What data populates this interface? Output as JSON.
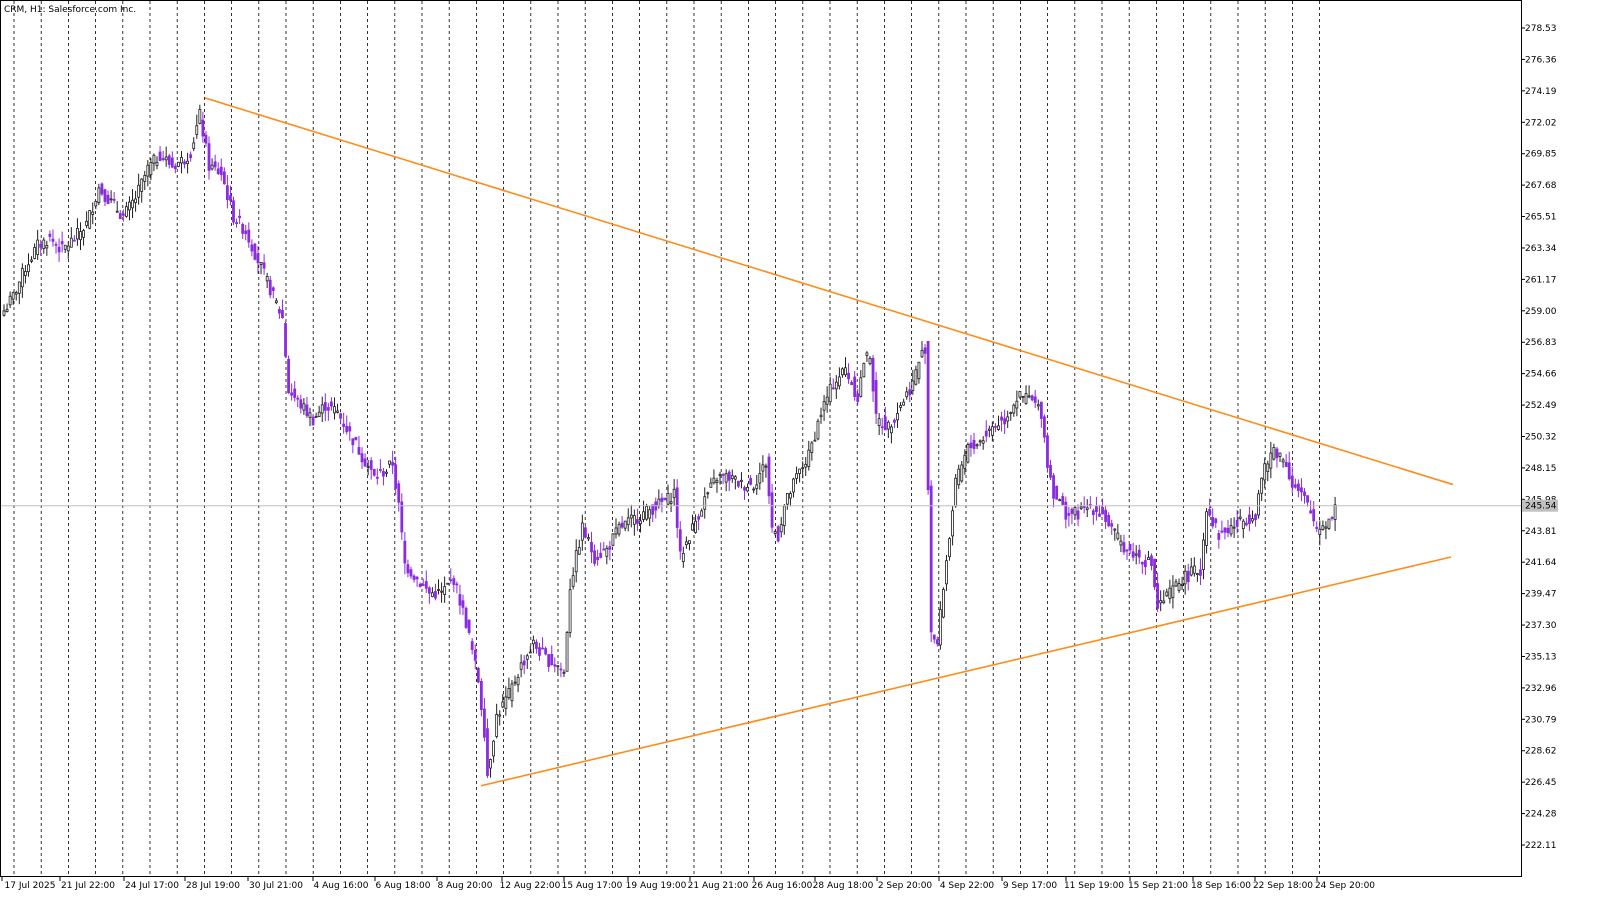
{
  "window": {
    "symbol": "CRM",
    "timeframe": "H1",
    "company": "Salesforce.com Inc.",
    "title_text": "CRM, H1:  Salesforce.com Inc."
  },
  "colors": {
    "bull": "#1f1f1f",
    "bear": "#8a2be2",
    "trendline": "#ff8c1a",
    "grid": "#000000",
    "price_line": "#c0c0c0",
    "price_label_bg": "#c0c0c0",
    "price_label_text": "#ffffff"
  },
  "chart_data": {
    "type": "candlestick",
    "ylim": [
      220.0,
      280.0
    ],
    "y_ticks": [
      "278.53",
      "276.36",
      "274.19",
      "272.02",
      "269.85",
      "267.68",
      "265.51",
      "263.34",
      "261.17",
      "259.00",
      "256.83",
      "254.66",
      "252.49",
      "250.32",
      "248.15",
      "245.98",
      "243.81",
      "241.64",
      "239.47",
      "237.30",
      "235.13",
      "232.96",
      "230.79",
      "228.62",
      "226.45",
      "224.28",
      "222.11"
    ],
    "x_labels": [
      "17 Jul 2025",
      "21 Jul 22:00",
      "24 Jul 17:00",
      "28 Jul 19:00",
      "30 Jul 21:00",
      "4 Aug 16:00",
      "6 Aug 18:00",
      "8 Aug 20:00",
      "12 Aug 22:00",
      "15 Aug 17:00",
      "19 Aug 19:00",
      "21 Aug 21:00",
      "26 Aug 16:00",
      "28 Aug 18:00",
      "2 Sep 20:00",
      "4 Sep 22:00",
      "9 Sep 17:00",
      "11 Sep 19:00",
      "15 Sep 21:00",
      "18 Sep 16:00",
      "22 Sep 18:00",
      "24 Sep 20:00"
    ],
    "current_price": "245.54",
    "close_path": [
      [
        0,
        259.0
      ],
      [
        3,
        260.0
      ],
      [
        7,
        262.0
      ],
      [
        11,
        263.5
      ],
      [
        15,
        264.0
      ],
      [
        19,
        263.2
      ],
      [
        23,
        264.0
      ],
      [
        27,
        265.0
      ],
      [
        31,
        267.5
      ],
      [
        35,
        266.5
      ],
      [
        39,
        265.5
      ],
      [
        43,
        266.8
      ],
      [
        47,
        268.8
      ],
      [
        51,
        269.8
      ],
      [
        55,
        269.0
      ],
      [
        59,
        269.5
      ],
      [
        61,
        270.0
      ],
      [
        64,
        272.5
      ],
      [
        67,
        269.0
      ],
      [
        71,
        268.5
      ],
      [
        75,
        265.5
      ],
      [
        79,
        264.5
      ],
      [
        83,
        262.5
      ],
      [
        87,
        260.5
      ],
      [
        91,
        258.5
      ],
      [
        93,
        253.5
      ],
      [
        97,
        252.5
      ],
      [
        101,
        251.5
      ],
      [
        105,
        252.5
      ],
      [
        109,
        252.0
      ],
      [
        113,
        250.5
      ],
      [
        117,
        249.0
      ],
      [
        121,
        247.5
      ],
      [
        125,
        248.0
      ],
      [
        127,
        248.5
      ],
      [
        129,
        245.5
      ],
      [
        131,
        241.5
      ],
      [
        135,
        240.5
      ],
      [
        139,
        239.5
      ],
      [
        143,
        239.5
      ],
      [
        147,
        240.5
      ],
      [
        151,
        237.5
      ],
      [
        155,
        233.5
      ],
      [
        157,
        230.0
      ],
      [
        158,
        227.0
      ],
      [
        161,
        231.0
      ],
      [
        165,
        232.5
      ],
      [
        169,
        234.5
      ],
      [
        173,
        236.0
      ],
      [
        177,
        235.0
      ],
      [
        181,
        234.5
      ],
      [
        183,
        234.0
      ],
      [
        185,
        240.0
      ],
      [
        189,
        244.0
      ],
      [
        193,
        242.0
      ],
      [
        197,
        242.5
      ],
      [
        201,
        244.0
      ],
      [
        205,
        244.5
      ],
      [
        209,
        245.0
      ],
      [
        213,
        245.5
      ],
      [
        217,
        246.0
      ],
      [
        219,
        246.5
      ],
      [
        221,
        242.0
      ],
      [
        225,
        244.0
      ],
      [
        229,
        246.0
      ],
      [
        233,
        247.5
      ],
      [
        237,
        247.5
      ],
      [
        241,
        247.0
      ],
      [
        245,
        247.0
      ],
      [
        249,
        248.5
      ],
      [
        251,
        244.0
      ],
      [
        253,
        243.5
      ],
      [
        255,
        245.5
      ],
      [
        259,
        247.5
      ],
      [
        263,
        249.0
      ],
      [
        267,
        252.0
      ],
      [
        271,
        254.0
      ],
      [
        275,
        255.0
      ],
      [
        277,
        254.0
      ],
      [
        279,
        253.0
      ],
      [
        281,
        255.5
      ],
      [
        283,
        256.0
      ],
      [
        285,
        251.5
      ],
      [
        289,
        251.0
      ],
      [
        293,
        252.5
      ],
      [
        297,
        254.0
      ],
      [
        299,
        255.5
      ],
      [
        301,
        256.5
      ],
      [
        303,
        237.0
      ],
      [
        305,
        236.0
      ],
      [
        307,
        240.0
      ],
      [
        309,
        243.5
      ],
      [
        311,
        247.0
      ],
      [
        315,
        249.5
      ],
      [
        319,
        250.0
      ],
      [
        323,
        251.0
      ],
      [
        327,
        251.5
      ],
      [
        331,
        253.0
      ],
      [
        335,
        253.0
      ],
      [
        339,
        252.0
      ],
      [
        341,
        248.5
      ],
      [
        343,
        246.5
      ],
      [
        347,
        245.0
      ],
      [
        351,
        245.0
      ],
      [
        355,
        245.5
      ],
      [
        359,
        245.0
      ],
      [
        363,
        243.5
      ],
      [
        367,
        242.5
      ],
      [
        371,
        242.0
      ],
      [
        375,
        241.5
      ],
      [
        377,
        238.5
      ],
      [
        381,
        239.5
      ],
      [
        385,
        240.5
      ],
      [
        389,
        241.0
      ],
      [
        391,
        241.0
      ],
      [
        393,
        245.5
      ],
      [
        397,
        243.5
      ],
      [
        401,
        244.0
      ],
      [
        405,
        244.5
      ],
      [
        409,
        245.0
      ],
      [
        411,
        247.5
      ],
      [
        415,
        249.5
      ],
      [
        419,
        248.5
      ],
      [
        421,
        247.0
      ],
      [
        425,
        246.0
      ],
      [
        429,
        244.0
      ],
      [
        433,
        244.5
      ],
      [
        435,
        245.5
      ]
    ]
  }
}
